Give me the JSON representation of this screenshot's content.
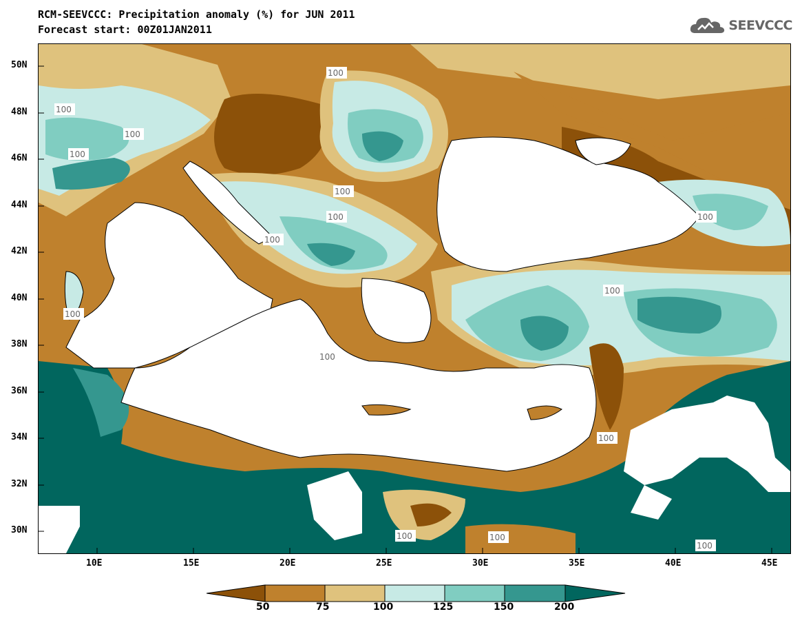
{
  "header": {
    "title_line1": "RCM-SEEVCCC: Precipitation anomaly (%) for JUN 2011",
    "title_line2": "Forecast start: 00Z01JAN2011",
    "logo_text": "SEEVCCC"
  },
  "map": {
    "lat_labels": [
      "50N",
      "48N",
      "46N",
      "44N",
      "42N",
      "40N",
      "38N",
      "36N",
      "34N",
      "32N",
      "30N"
    ],
    "lon_labels": [
      "10E",
      "15E",
      "20E",
      "25E",
      "30E",
      "35E",
      "40E",
      "45E"
    ],
    "contour_label": "100"
  },
  "colorbar": {
    "labels": [
      "50",
      "75",
      "100",
      "125",
      "150",
      "200"
    ],
    "colors": [
      "#8c5109",
      "#bf812d",
      "#dfc27d",
      "#c7eae5",
      "#80cdc1",
      "#35978f",
      "#01665e"
    ]
  },
  "palette": {
    "sea": "#ffffff",
    "very_dry": "#8c5109",
    "dry": "#bf812d",
    "slightly_dry": "#dfc27d",
    "normal_wet": "#c7eae5",
    "wet": "#80cdc1",
    "very_wet": "#35978f",
    "extreme_wet": "#01665e"
  }
}
